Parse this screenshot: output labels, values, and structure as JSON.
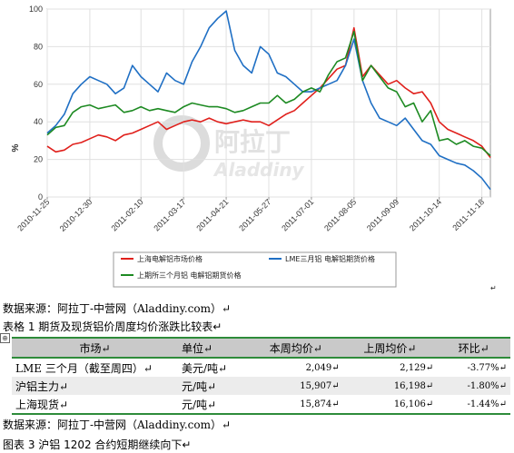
{
  "chart_data": {
    "type": "line",
    "ylabel": "%",
    "ylim": [
      0,
      100
    ],
    "yticks": [
      0,
      20,
      40,
      60,
      80,
      100
    ],
    "grid": true,
    "x": [
      "2010-11-25",
      "2010-12-02",
      "2010-12-09",
      "2010-12-16",
      "2010-12-23",
      "2010-12-30",
      "2011-01-06",
      "2011-01-13",
      "2011-01-20",
      "2011-01-27",
      "2011-02-03",
      "2011-02-10",
      "2011-02-17",
      "2011-02-24",
      "2011-03-03",
      "2011-03-10",
      "2011-03-17",
      "2011-03-24",
      "2011-03-31",
      "2011-04-07",
      "2011-04-14",
      "2011-04-21",
      "2011-04-28",
      "2011-05-05",
      "2011-05-12",
      "2011-05-19",
      "2011-05-27",
      "2011-06-03",
      "2011-06-10",
      "2011-06-17",
      "2011-06-24",
      "2011-07-01",
      "2011-07-08",
      "2011-07-15",
      "2011-07-22",
      "2011-07-29",
      "2011-08-05",
      "2011-08-12",
      "2011-08-19",
      "2011-08-26",
      "2011-09-02",
      "2011-09-09",
      "2011-09-16",
      "2011-09-23",
      "2011-09-30",
      "2011-10-07",
      "2011-10-14",
      "2011-10-21",
      "2011-10-28",
      "2011-11-04",
      "2011-11-11",
      "2011-11-18",
      "2011-11-25"
    ],
    "x_tick_labels": [
      "2010-11-25",
      "2010-12-30",
      "2011-02-10",
      "2011-03-17",
      "2011-04-21",
      "2011-05-27",
      "2011-07-01",
      "2011-08-05",
      "2011-09-09",
      "2011-10-14",
      "2011-11-18"
    ],
    "legend_position": "bottom",
    "series": [
      {
        "name": "上海电解铝市场价格",
        "color": "#e0201c",
        "values": [
          27,
          24,
          25,
          28,
          29,
          31,
          33,
          32,
          30,
          33,
          34,
          36,
          38,
          40,
          36,
          38,
          40,
          41,
          40,
          42,
          40,
          39,
          40,
          41,
          40,
          40,
          38,
          41,
          44,
          46,
          50,
          54,
          58,
          63,
          68,
          70,
          90,
          64,
          70,
          65,
          60,
          62,
          58,
          55,
          56,
          50,
          40,
          36,
          34,
          32,
          30,
          27,
          21
        ]
      },
      {
        "name": "LME三月铝 电解铝期货价格",
        "color": "#1f6fc4",
        "values": [
          34,
          38,
          44,
          55,
          60,
          64,
          62,
          60,
          55,
          58,
          70,
          64,
          60,
          56,
          66,
          62,
          60,
          72,
          80,
          90,
          95,
          99,
          78,
          70,
          66,
          80,
          76,
          66,
          64,
          60,
          56,
          56,
          58,
          60,
          62,
          70,
          84,
          62,
          50,
          42,
          40,
          38,
          42,
          36,
          30,
          28,
          22,
          20,
          18,
          17,
          14,
          10,
          4
        ]
      },
      {
        "name": "上期所三个月铝 电解铝期货价格",
        "color": "#1d8a22",
        "values": [
          33,
          37,
          38,
          45,
          48,
          49,
          47,
          48,
          49,
          45,
          46,
          48,
          46,
          47,
          46,
          45,
          48,
          50,
          49,
          48,
          48,
          47,
          45,
          46,
          48,
          50,
          50,
          54,
          50,
          52,
          56,
          58,
          56,
          65,
          72,
          74,
          88,
          62,
          70,
          64,
          58,
          56,
          48,
          50,
          40,
          46,
          30,
          31,
          28,
          30,
          27,
          26,
          22
        ]
      }
    ]
  },
  "watermark": {
    "cn": "阿拉丁",
    "en": "Aladdiny"
  },
  "texts": {
    "return_mark": "↵",
    "source_1": "数据来源：阿拉丁-中营网（Aladdiny.com）↵",
    "table_caption": "表格 1    期货及现货铝价周度均价涨跌比较表↵",
    "anchor_icon": "⊕",
    "source_2": "数据来源：阿拉丁-中营网（Aladdiny.com）↵",
    "figure_caption": "图表 3   沪铝 1202 合约短期继续向下↵"
  },
  "table": {
    "headers": [
      "市场↵",
      "单位↵",
      "本周均价↵",
      "上周均价↵",
      "环比↵"
    ],
    "rows": [
      [
        "LME 三个月（截至周四）↵",
        "美元/吨↵",
        "2,049↵",
        "2,129↵",
        "-3.77%↵"
      ],
      [
        "沪铝主力↵",
        "元/吨↵",
        "15,907↵",
        "16,198↵",
        "-1.80%↵"
      ],
      [
        "上海现货↵",
        "元/吨↵",
        "15,874↵",
        "16,106↵",
        "-1.44%↵"
      ]
    ]
  }
}
